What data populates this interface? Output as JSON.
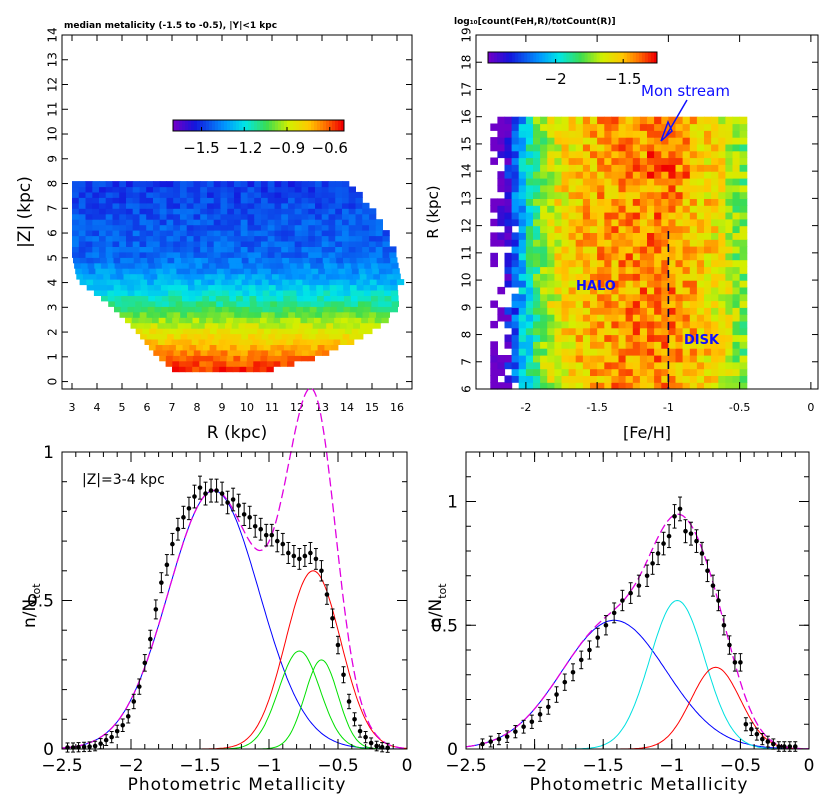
{
  "chart_data": [
    {
      "type": "heatmap",
      "title": "median metalicity (-1.5 to -0.5), |Y|<1 kpc",
      "xlabel": "R (kpc)",
      "ylabel": "|Z| (kpc)",
      "xlim": [
        2.6,
        16.6
      ],
      "ylim": [
        -0.3,
        14
      ],
      "xticks": [
        "3",
        "4",
        "5",
        "6",
        "7",
        "8",
        "9",
        "10",
        "11",
        "12",
        "13",
        "14",
        "15",
        "16"
      ],
      "yticks": [
        "0",
        "1",
        "2",
        "3",
        "4",
        "5",
        "6",
        "7",
        "8",
        "9",
        "10",
        "11",
        "12",
        "13",
        "14"
      ],
      "colorbar": {
        "range": [
          -1.7,
          -0.5
        ],
        "ticks": [
          "−1.5",
          "−1.2",
          "−0.9",
          "−0.6"
        ]
      },
      "region_rows_z_top_to_bottom": [
        {
          "z": 8.0,
          "r_min": 3.0,
          "r_max": 13.9,
          "value": -1.5
        },
        {
          "z": 6.5,
          "r_min": 3.0,
          "r_max": 15.2,
          "value": -1.45
        },
        {
          "z": 5.0,
          "r_min": 3.0,
          "r_max": 15.8,
          "value": -1.42
        },
        {
          "z": 4.0,
          "r_min": 3.2,
          "r_max": 16.0,
          "value": -1.3
        },
        {
          "z": 3.0,
          "r_min": 4.5,
          "r_max": 16.0,
          "value": -1.1
        },
        {
          "z": 2.0,
          "r_min": 5.5,
          "r_max": 15.0,
          "value": -0.85
        },
        {
          "z": 1.0,
          "r_min": 6.3,
          "r_max": 13.0,
          "value": -0.65
        },
        {
          "z": 0.4,
          "r_min": 7.0,
          "r_max": 11.0,
          "value": -0.55
        }
      ]
    },
    {
      "type": "heatmap",
      "title": "log₁₀[count(FeH,R)/totCount(R)]",
      "xlabel": "[Fe/H]",
      "ylabel": "R (kpc)",
      "xlim": [
        -2.35,
        0.05
      ],
      "ylim": [
        6,
        19
      ],
      "xticks": [
        "-2",
        "-1.5",
        "-1",
        "-0.5",
        "0"
      ],
      "yticks": [
        "6",
        "7",
        "8",
        "9",
        "10",
        "11",
        "12",
        "13",
        "14",
        "15",
        "16",
        "17",
        "18",
        "19"
      ],
      "colorbar": {
        "range": [
          -2.5,
          -1.25
        ],
        "ticks": [
          "−2",
          "−1.5"
        ]
      },
      "annotations": [
        "Mon stream",
        "HALO",
        "DISK"
      ],
      "disk_divider_feh": -1.0,
      "feh_profile": [
        [
          -2.2,
          -2.6
        ],
        [
          -2.1,
          -2.3
        ],
        [
          -2.0,
          -2.0
        ],
        [
          -1.9,
          -1.75
        ],
        [
          -1.8,
          -1.62
        ],
        [
          -1.6,
          -1.5
        ],
        [
          -1.4,
          -1.45
        ],
        [
          -1.2,
          -1.42
        ],
        [
          -1.0,
          -1.42
        ],
        [
          -0.8,
          -1.5
        ],
        [
          -0.6,
          -1.62
        ],
        [
          -0.5,
          -1.75
        ]
      ]
    },
    {
      "type": "line",
      "annotation": "|Z|=3-4 kpc",
      "xlabel": "Photometric Metallicity",
      "ylabel": "n/N",
      "ylabel_sub": "tot",
      "xlim": [
        -2.5,
        0
      ],
      "ylim": [
        0,
        1.0
      ],
      "xticks": [
        "−2.5",
        "−2",
        "−1.5",
        "−1",
        "−0.5",
        "0"
      ],
      "yticks": [
        "0",
        "0.5",
        "1"
      ],
      "components": [
        {
          "color": "#0000ff",
          "amp": 0.87,
          "mu": -1.4,
          "sigma": 0.33
        },
        {
          "color": "#ff0000",
          "amp": 0.6,
          "mu": -0.68,
          "sigma": 0.2
        },
        {
          "color": "#00e000",
          "amp": 0.33,
          "mu": -0.78,
          "sigma": 0.15
        },
        {
          "color": "#00e000",
          "amp": 0.3,
          "mu": -0.62,
          "sigma": 0.12
        }
      ],
      "total_color": "#e000e0",
      "points": {
        "x": [
          -2.46,
          -2.42,
          -2.38,
          -2.34,
          -2.3,
          -2.26,
          -2.22,
          -2.18,
          -2.14,
          -2.1,
          -2.06,
          -2.02,
          -1.98,
          -1.94,
          -1.9,
          -1.86,
          -1.82,
          -1.78,
          -1.74,
          -1.7,
          -1.66,
          -1.62,
          -1.58,
          -1.54,
          -1.5,
          -1.46,
          -1.42,
          -1.38,
          -1.34,
          -1.3,
          -1.26,
          -1.22,
          -1.18,
          -1.14,
          -1.1,
          -1.06,
          -1.02,
          -0.98,
          -0.94,
          -0.9,
          -0.86,
          -0.82,
          -0.78,
          -0.74,
          -0.7,
          -0.66,
          -0.62,
          -0.58,
          -0.54,
          -0.5,
          -0.46,
          -0.42,
          -0.38,
          -0.34,
          -0.3,
          -0.26,
          -0.22,
          -0.18,
          -0.14
        ],
        "y": [
          0.005,
          0.005,
          0.006,
          0.007,
          0.008,
          0.01,
          0.018,
          0.03,
          0.04,
          0.06,
          0.08,
          0.11,
          0.16,
          0.21,
          0.29,
          0.37,
          0.47,
          0.56,
          0.62,
          0.69,
          0.74,
          0.78,
          0.81,
          0.85,
          0.88,
          0.86,
          0.87,
          0.87,
          0.86,
          0.83,
          0.84,
          0.82,
          0.79,
          0.78,
          0.75,
          0.74,
          0.72,
          0.72,
          0.7,
          0.69,
          0.66,
          0.65,
          0.64,
          0.65,
          0.66,
          0.64,
          0.6,
          0.52,
          0.44,
          0.35,
          0.25,
          0.16,
          0.1,
          0.06,
          0.04,
          0.02,
          0.01,
          0.006,
          0.004
        ]
      }
    },
    {
      "type": "line",
      "xlabel": "Photometric Metallicity",
      "ylabel": "n/N",
      "ylabel_sub": "tot",
      "xlim": [
        -2.5,
        0
      ],
      "ylim": [
        0,
        1.2
      ],
      "xticks": [
        "−2.5",
        "−2",
        "−1.5",
        "−1",
        "−0.5",
        "0"
      ],
      "yticks": [
        "0",
        "0.5",
        "1"
      ],
      "components": [
        {
          "color": "#0000ff",
          "amp": 0.52,
          "mu": -1.42,
          "sigma": 0.38
        },
        {
          "color": "#00e0e0",
          "amp": 0.6,
          "mu": -0.96,
          "sigma": 0.2
        },
        {
          "color": "#ff0000",
          "amp": 0.33,
          "mu": -0.68,
          "sigma": 0.18
        }
      ],
      "total_color": "#e000e0",
      "points": {
        "x": [
          -2.38,
          -2.32,
          -2.26,
          -2.2,
          -2.14,
          -2.08,
          -2.02,
          -1.96,
          -1.9,
          -1.84,
          -1.78,
          -1.72,
          -1.66,
          -1.6,
          -1.54,
          -1.48,
          -1.42,
          -1.36,
          -1.3,
          -1.24,
          -1.18,
          -1.14,
          -1.1,
          -1.06,
          -1.02,
          -0.98,
          -0.94,
          -0.9,
          -0.86,
          -0.82,
          -0.78,
          -0.74,
          -0.7,
          -0.66,
          -0.62,
          -0.58,
          -0.54,
          -0.5,
          -0.46,
          -0.42,
          -0.38,
          -0.34,
          -0.3,
          -0.26,
          -0.22,
          -0.18,
          -0.14,
          -0.1
        ],
        "y": [
          0.02,
          0.03,
          0.04,
          0.05,
          0.07,
          0.09,
          0.11,
          0.14,
          0.17,
          0.22,
          0.27,
          0.31,
          0.36,
          0.4,
          0.45,
          0.5,
          0.55,
          0.6,
          0.63,
          0.66,
          0.7,
          0.75,
          0.79,
          0.83,
          0.86,
          0.94,
          0.97,
          0.88,
          0.87,
          0.84,
          0.79,
          0.72,
          0.66,
          0.6,
          0.5,
          0.42,
          0.35,
          0.35,
          0.1,
          0.08,
          0.06,
          0.04,
          0.03,
          0.02,
          0.01,
          0.01,
          0.01,
          0.01
        ]
      }
    }
  ]
}
